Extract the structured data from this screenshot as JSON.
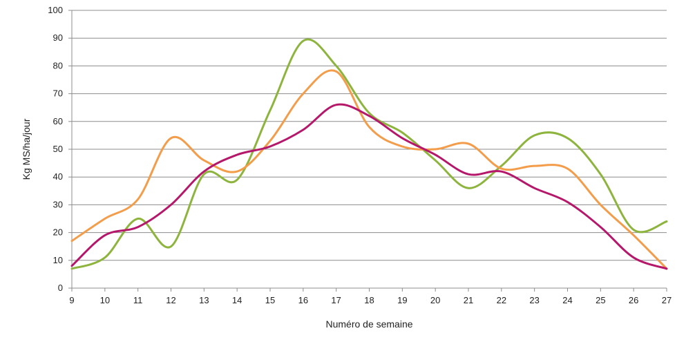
{
  "chart_data": {
    "type": "line",
    "xlabel": "Numéro de semaine",
    "ylabel": "Kg MS/ha/jour",
    "ylim": [
      0,
      100
    ],
    "yticks": [
      0,
      10,
      20,
      30,
      40,
      50,
      60,
      70,
      80,
      90,
      100
    ],
    "x": [
      9,
      10,
      11,
      12,
      13,
      14,
      15,
      16,
      17,
      18,
      19,
      20,
      21,
      22,
      23,
      24,
      25,
      26,
      27
    ],
    "grid": true,
    "legend": "none",
    "series": [
      {
        "color": "#8db43d",
        "values": [
          7,
          11,
          25,
          15,
          41,
          39,
          64,
          89,
          80,
          63,
          56,
          46,
          36,
          44,
          55,
          54,
          41,
          21,
          24
        ]
      },
      {
        "color": "#f39c4a",
        "values": [
          17,
          25,
          32,
          54,
          46,
          42,
          53,
          70,
          78,
          58,
          51,
          50,
          52,
          43,
          44,
          43,
          30,
          19,
          7
        ]
      },
      {
        "color": "#b5176b",
        "values": [
          8,
          19,
          22,
          30,
          42,
          48,
          51,
          57,
          66,
          62,
          54,
          48,
          41,
          42,
          36,
          31,
          22,
          11,
          7
        ]
      }
    ]
  }
}
